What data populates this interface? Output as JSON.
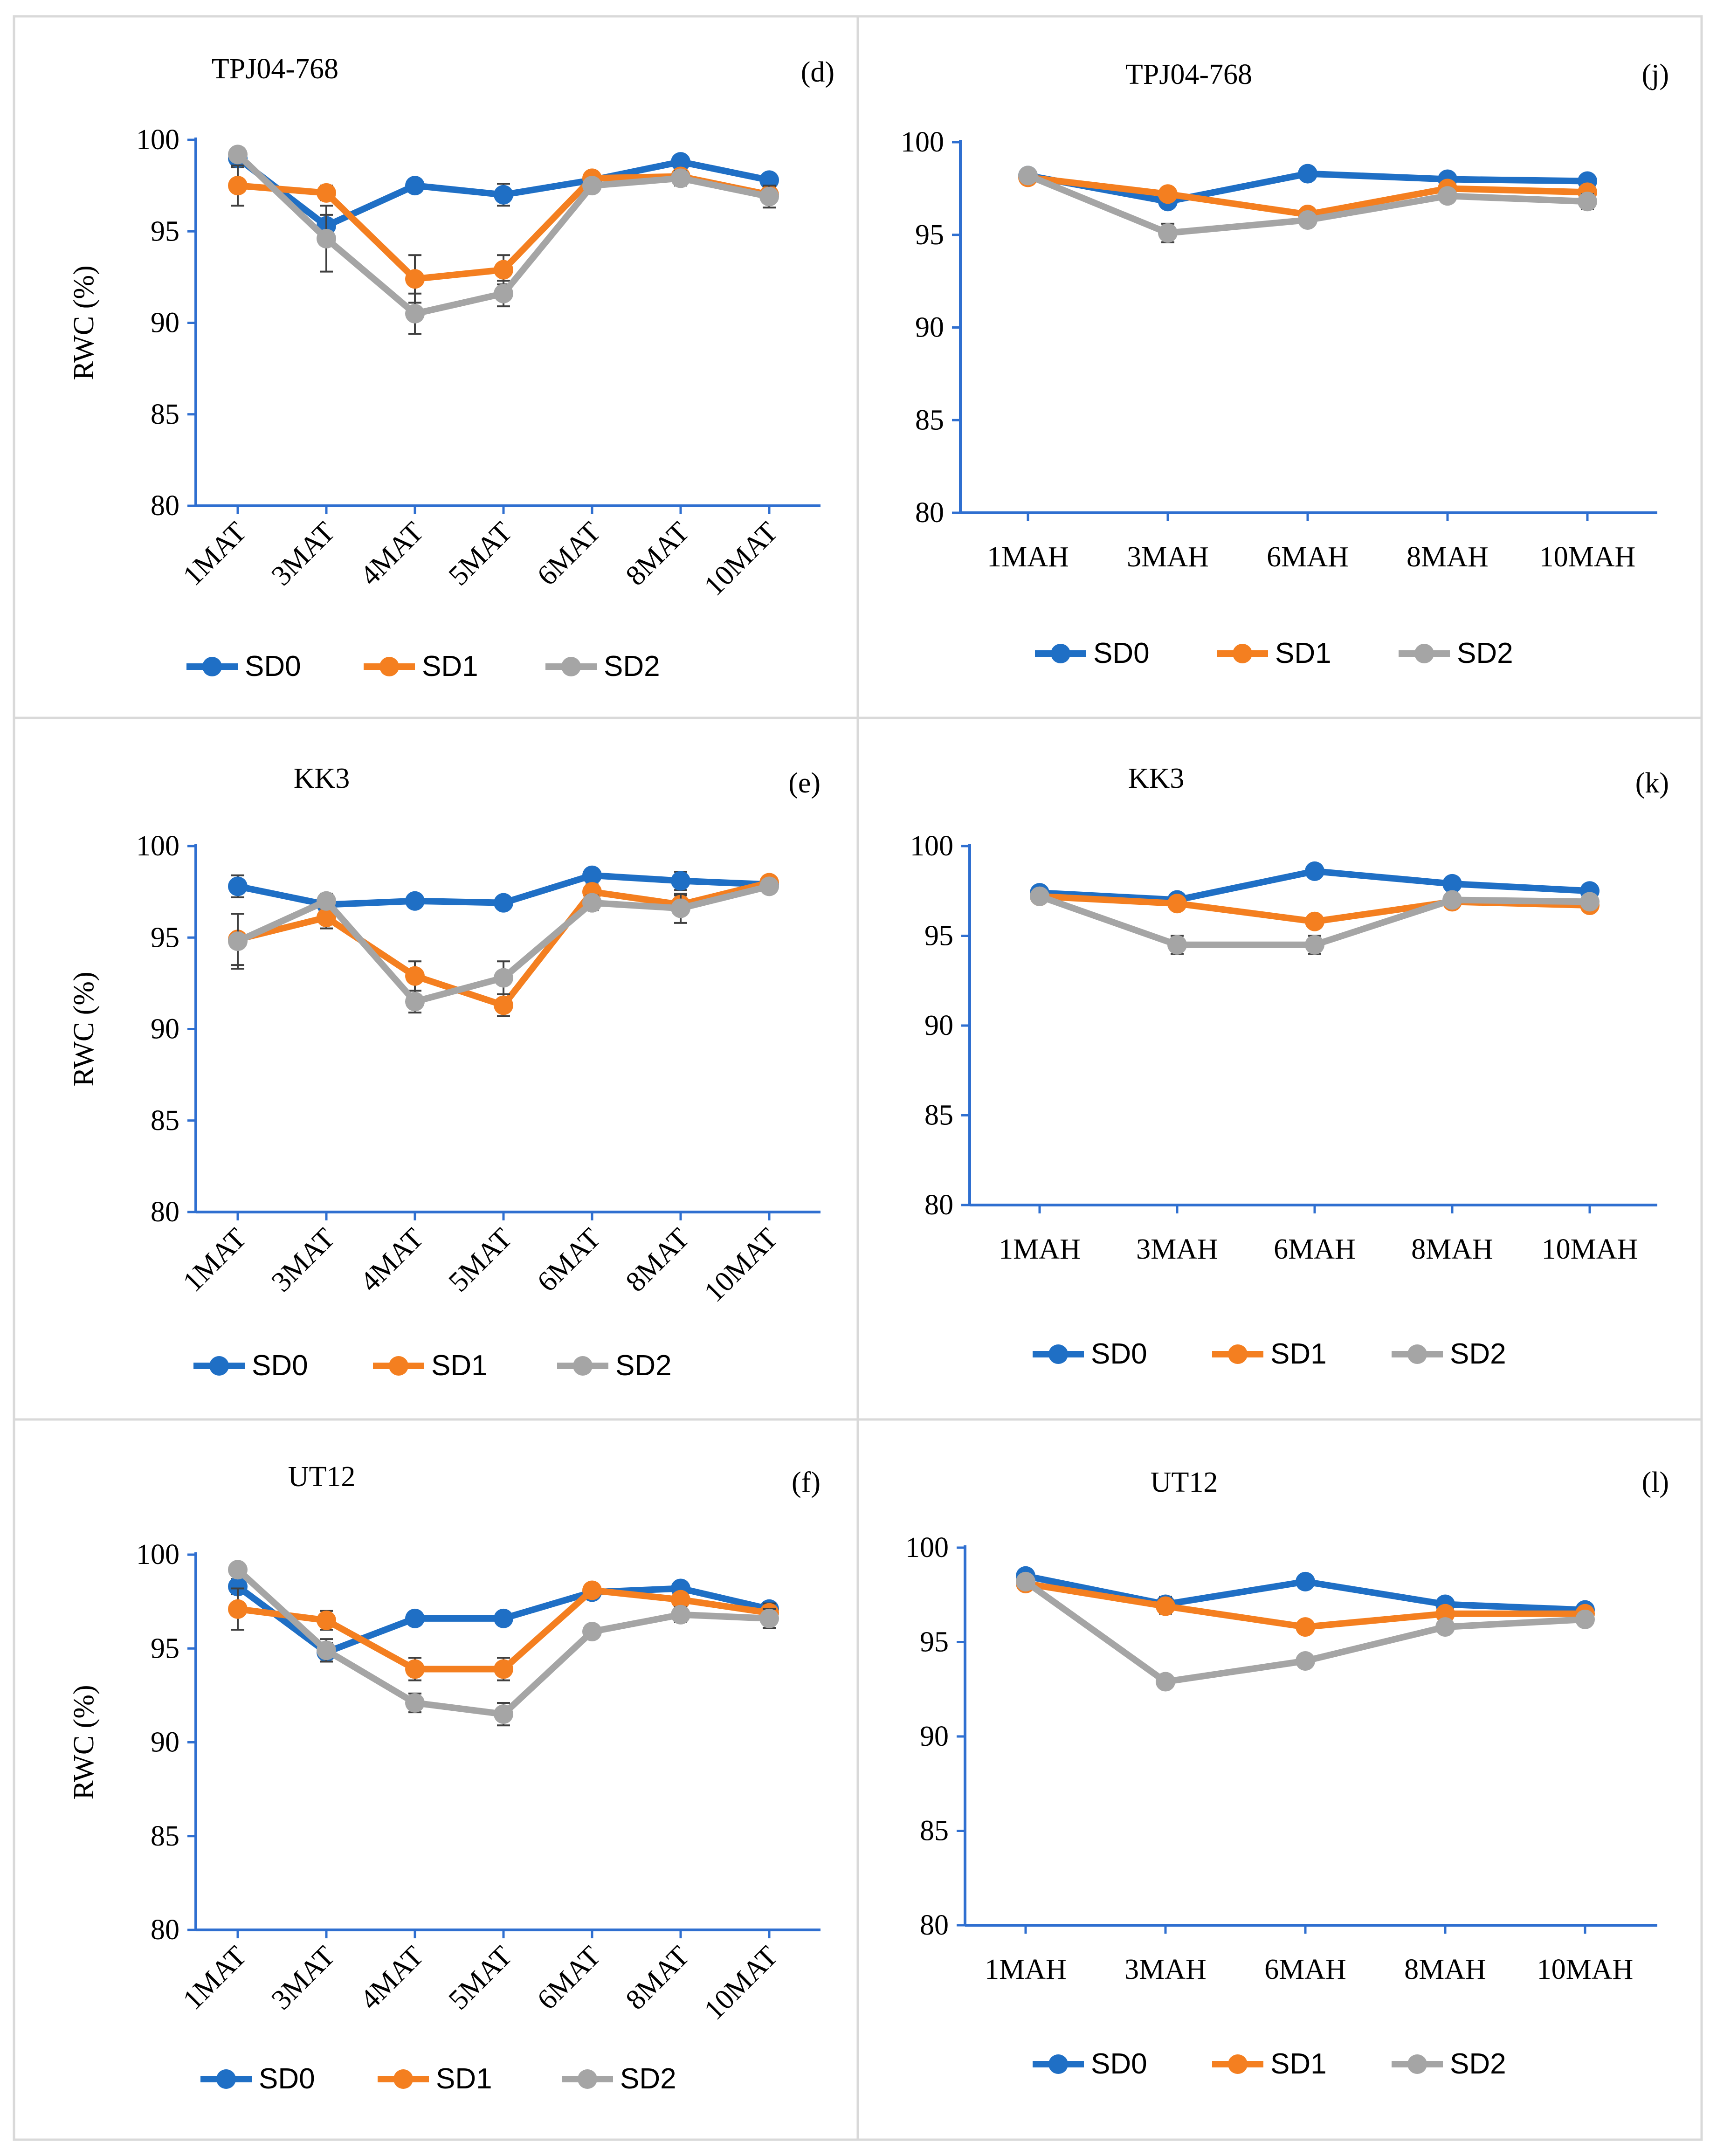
{
  "colors": {
    "SD0": "#1F6FC5",
    "SD1": "#F47F20",
    "SD2": "#A5A5A5",
    "axis": "#2F6FD0",
    "error": "#404040",
    "grid": "#D0D0D0"
  },
  "chart_data": [
    {
      "type": "line",
      "panel": "d",
      "title": "TPJ04-768",
      "ylabel": "RWC (%)",
      "ylim": [
        80,
        100
      ],
      "yticks": [
        "100",
        "95",
        "90",
        "85",
        "80"
      ],
      "categories": [
        "1MAT",
        "3MAT",
        "4MAT",
        "5MAT",
        "6MAT",
        "8MAT",
        "10MAT"
      ],
      "series": [
        {
          "name": "SD0",
          "values": [
            99.0,
            95.3,
            97.5,
            97.0,
            97.8,
            98.8,
            97.8
          ],
          "errors": [
            0.5,
            0.6,
            0.3,
            0.6,
            0.3,
            0.3,
            0.3
          ]
        },
        {
          "name": "SD1",
          "values": [
            97.5,
            97.1,
            92.4,
            92.9,
            97.9,
            98.0,
            97.0
          ],
          "errors": [
            1.1,
            0.4,
            1.3,
            0.8,
            0.3,
            0.3,
            0.4
          ]
        },
        {
          "name": "SD2",
          "values": [
            99.2,
            94.6,
            90.5,
            91.6,
            97.5,
            97.9,
            96.9
          ],
          "errors": [
            0.3,
            1.8,
            1.1,
            0.7,
            0.3,
            0.4,
            0.6
          ]
        }
      ],
      "legend": [
        "SD0",
        "SD1",
        "SD2"
      ]
    },
    {
      "type": "line",
      "panel": "j",
      "title": "TPJ04-768",
      "ylabel": "",
      "ylim": [
        80,
        100
      ],
      "yticks": [
        "100",
        "95",
        "90",
        "85",
        "80"
      ],
      "categories": [
        "1MAH",
        "3MAH",
        "6MAH",
        "8MAH",
        "10MAH"
      ],
      "series": [
        {
          "name": "SD0",
          "values": [
            98.2,
            96.8,
            98.3,
            98.0,
            97.9
          ],
          "errors": [
            0.2,
            0.3,
            0.3,
            0.2,
            0.2
          ]
        },
        {
          "name": "SD1",
          "values": [
            98.1,
            97.2,
            96.1,
            97.5,
            97.3
          ],
          "errors": [
            0.2,
            0.3,
            0.3,
            0.2,
            0.2
          ]
        },
        {
          "name": "SD2",
          "values": [
            98.2,
            95.1,
            95.8,
            97.1,
            96.8
          ],
          "errors": [
            0.2,
            0.5,
            0.3,
            0.3,
            0.4
          ]
        }
      ],
      "legend": [
        "SD0",
        "SD1",
        "SD2"
      ]
    },
    {
      "type": "line",
      "panel": "e",
      "title": "KK3",
      "ylabel": "RWC (%)",
      "ylim": [
        80,
        100
      ],
      "yticks": [
        "100",
        "95",
        "90",
        "85",
        "80"
      ],
      "categories": [
        "1MAT",
        "3MAT",
        "4MAT",
        "5MAT",
        "6MAT",
        "8MAT",
        "10MAT"
      ],
      "series": [
        {
          "name": "SD0",
          "values": [
            97.8,
            96.8,
            97.0,
            96.9,
            98.4,
            98.1,
            97.9
          ],
          "errors": [
            0.6,
            0.3,
            0.3,
            0.3,
            0.3,
            0.5,
            0.3
          ]
        },
        {
          "name": "SD1",
          "values": [
            94.9,
            96.1,
            92.9,
            91.3,
            97.5,
            96.8,
            98.0
          ],
          "errors": [
            1.4,
            0.6,
            0.8,
            0.6,
            0.4,
            0.5,
            0.3
          ]
        },
        {
          "name": "SD2",
          "values": [
            94.8,
            97.0,
            91.5,
            92.8,
            96.9,
            96.6,
            97.8
          ],
          "errors": [
            1.5,
            0.4,
            0.6,
            0.9,
            0.4,
            0.8,
            0.3
          ]
        }
      ],
      "legend": [
        "SD0",
        "SD1",
        "SD2"
      ]
    },
    {
      "type": "line",
      "panel": "k",
      "title": "KK3",
      "ylabel": "",
      "ylim": [
        80,
        100
      ],
      "yticks": [
        "100",
        "95",
        "90",
        "85",
        "80"
      ],
      "categories": [
        "1MAH",
        "3MAH",
        "6MAH",
        "8MAH",
        "10MAH"
      ],
      "series": [
        {
          "name": "SD0",
          "values": [
            97.4,
            97.0,
            98.6,
            97.9,
            97.5
          ],
          "errors": [
            0.2,
            0.2,
            0.3,
            0.2,
            0.3
          ]
        },
        {
          "name": "SD1",
          "values": [
            97.2,
            96.8,
            95.8,
            96.9,
            96.7
          ],
          "errors": [
            0.2,
            0.3,
            0.3,
            0.2,
            0.3
          ]
        },
        {
          "name": "SD2",
          "values": [
            97.2,
            94.5,
            94.5,
            97.0,
            96.9
          ],
          "errors": [
            0.2,
            0.5,
            0.5,
            0.3,
            0.3
          ]
        }
      ],
      "legend": [
        "SD0",
        "SD1",
        "SD2"
      ]
    },
    {
      "type": "line",
      "panel": "f",
      "title": "UT12",
      "ylabel": "RWC (%)",
      "ylim": [
        80,
        100
      ],
      "yticks": [
        "100",
        "95",
        "90",
        "85",
        "80"
      ],
      "categories": [
        "1MAT",
        "3MAT",
        "4MAT",
        "5MAT",
        "6MAT",
        "8MAT",
        "10MAT"
      ],
      "series": [
        {
          "name": "SD0",
          "values": [
            98.3,
            94.8,
            96.6,
            96.6,
            98.0,
            98.2,
            97.1
          ],
          "errors": [
            0.4,
            0.5,
            0.3,
            0.3,
            0.3,
            0.3,
            0.3
          ]
        },
        {
          "name": "SD1",
          "values": [
            97.1,
            96.5,
            93.9,
            93.9,
            98.1,
            97.6,
            96.9
          ],
          "errors": [
            1.1,
            0.5,
            0.6,
            0.6,
            0.3,
            0.3,
            0.5
          ]
        },
        {
          "name": "SD2",
          "values": [
            99.2,
            94.9,
            92.1,
            91.5,
            95.9,
            96.8,
            96.6
          ],
          "errors": [
            0.3,
            0.6,
            0.5,
            0.6,
            0.3,
            0.4,
            0.5
          ]
        }
      ],
      "legend": [
        "SD0",
        "SD1",
        "SD2"
      ]
    },
    {
      "type": "line",
      "panel": "l",
      "title": "UT12",
      "ylabel": "",
      "ylim": [
        80,
        100
      ],
      "yticks": [
        "100",
        "95",
        "90",
        "85",
        "80"
      ],
      "categories": [
        "1MAH",
        "3MAH",
        "6MAH",
        "8MAH",
        "10MAH"
      ],
      "series": [
        {
          "name": "SD0",
          "values": [
            98.5,
            97.0,
            98.2,
            97.0,
            96.7
          ],
          "errors": [
            0.3,
            0.4,
            0.3,
            0.3,
            0.3
          ]
        },
        {
          "name": "SD1",
          "values": [
            98.1,
            96.9,
            95.8,
            96.5,
            96.5
          ],
          "errors": [
            0.3,
            0.4,
            0.3,
            0.3,
            0.3
          ]
        },
        {
          "name": "SD2",
          "values": [
            98.2,
            92.9,
            94.0,
            95.8,
            96.2
          ],
          "errors": [
            0.3,
            0.3,
            0.3,
            0.3,
            0.3
          ]
        }
      ],
      "legend": [
        "SD0",
        "SD1",
        "SD2"
      ]
    }
  ]
}
